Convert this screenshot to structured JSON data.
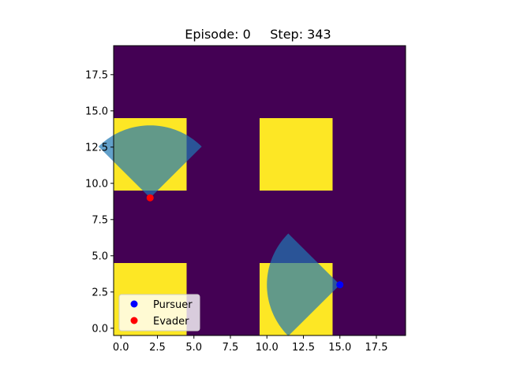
{
  "title": {
    "episode_label": "Episode: 0",
    "step_label": "Step: 343"
  },
  "chart_data": {
    "type": "heatmap",
    "grid_size": [
      20,
      20
    ],
    "xlim": [
      -0.5,
      19.5
    ],
    "ylim": [
      -0.5,
      19.5
    ],
    "colors": {
      "free": "#440154",
      "obstacle": "#fde725",
      "vision_cone": "#1f77b4",
      "pursuer": "#0000ff",
      "evader": "#ff0000"
    },
    "obstacles": [
      {
        "x": [
          0,
          4
        ],
        "y": [
          10,
          14
        ]
      },
      {
        "x": [
          10,
          14
        ],
        "y": [
          10,
          14
        ]
      },
      {
        "x": [
          0,
          4
        ],
        "y": [
          0,
          4
        ]
      },
      {
        "x": [
          10,
          14
        ],
        "y": [
          0,
          4
        ]
      }
    ],
    "agents": [
      {
        "name": "Pursuer",
        "x": 15,
        "y": 3,
        "vision_radius": 5,
        "heading_deg": 180,
        "fov_deg": 90
      },
      {
        "name": "Evader",
        "x": 2,
        "y": 9,
        "vision_radius": 5,
        "heading_deg": 90,
        "fov_deg": 90
      }
    ],
    "xticks": [
      0.0,
      2.5,
      5.0,
      7.5,
      10.0,
      12.5,
      15.0,
      17.5
    ],
    "yticks": [
      0.0,
      2.5,
      5.0,
      7.5,
      10.0,
      12.5,
      15.0,
      17.5
    ],
    "xtick_labels": [
      "0.0",
      "2.5",
      "5.0",
      "7.5",
      "10.0",
      "12.5",
      "15.0",
      "17.5"
    ],
    "ytick_labels": [
      "0.0",
      "2.5",
      "5.0",
      "7.5",
      "10.0",
      "12.5",
      "15.0",
      "17.5"
    ],
    "legend": {
      "placement": "lower-left",
      "entries": [
        "Pursuer",
        "Evader"
      ]
    }
  }
}
